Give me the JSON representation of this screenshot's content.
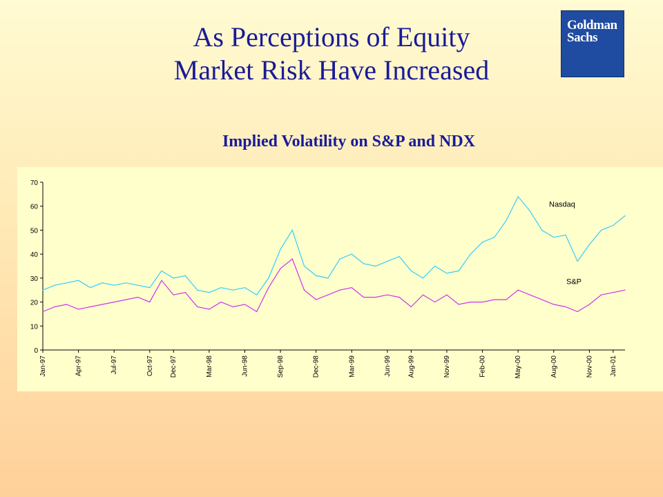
{
  "slide": {
    "title_line1": "As Perceptions of Equity",
    "title_line2": "Market Risk Have Increased",
    "logo_line1": "Goldman",
    "logo_line2": "Sachs"
  },
  "chart_data": {
    "type": "line",
    "title": "Implied Volatility on S&P and NDX",
    "xlabel": "",
    "ylabel": "",
    "ylim": [
      0,
      70
    ],
    "yticks": [
      0,
      10,
      20,
      30,
      40,
      50,
      60,
      70
    ],
    "grid": false,
    "x_tick_labels": [
      "Jan-97",
      "Apr-97",
      "Jul-97",
      "Oct-97",
      "Dec-97",
      "Mar-98",
      "Jun-98",
      "Sep-98",
      "Dec-98",
      "Mar-99",
      "Jun-99",
      "Aug-99",
      "Nov-99",
      "Feb-00",
      "May-00",
      "Aug-00",
      "Nov-00",
      "Jan-01"
    ],
    "x_tick_dates": [
      "1997-01",
      "1997-04",
      "1997-07",
      "1997-10",
      "1997-12",
      "1998-03",
      "1998-06",
      "1998-09",
      "1998-12",
      "1999-03",
      "1999-06",
      "1999-08",
      "1999-11",
      "2000-02",
      "2000-05",
      "2000-08",
      "2000-11",
      "2001-01"
    ],
    "series": [
      {
        "name": "Nasdaq",
        "color": "#33ccff",
        "x": [
          "1997-01",
          "1997-02",
          "1997-03",
          "1997-04",
          "1997-05",
          "1997-06",
          "1997-07",
          "1997-08",
          "1997-09",
          "1997-10",
          "1997-11",
          "1997-12",
          "1998-01",
          "1998-02",
          "1998-03",
          "1998-04",
          "1998-05",
          "1998-06",
          "1998-07",
          "1998-08",
          "1998-09",
          "1998-10",
          "1998-11",
          "1998-12",
          "1999-01",
          "1999-02",
          "1999-03",
          "1999-04",
          "1999-05",
          "1999-06",
          "1999-07",
          "1999-08",
          "1999-09",
          "1999-10",
          "1999-11",
          "1999-12",
          "2000-01",
          "2000-02",
          "2000-03",
          "2000-04",
          "2000-05",
          "2000-06",
          "2000-07",
          "2000-08",
          "2000-09",
          "2000-10",
          "2000-11",
          "2000-12",
          "2001-01",
          "2001-02"
        ],
        "values": [
          25,
          27,
          28,
          29,
          26,
          28,
          27,
          28,
          27,
          26,
          33,
          30,
          31,
          25,
          24,
          26,
          25,
          26,
          23,
          30,
          42,
          50,
          35,
          31,
          30,
          38,
          40,
          36,
          35,
          37,
          39,
          33,
          30,
          35,
          32,
          33,
          40,
          45,
          47,
          54,
          64,
          58,
          50,
          47,
          48,
          37,
          44,
          50,
          52,
          56
        ]
      },
      {
        "name": "S&P",
        "color": "#cc33ee",
        "x": [
          "1997-01",
          "1997-02",
          "1997-03",
          "1997-04",
          "1997-05",
          "1997-06",
          "1997-07",
          "1997-08",
          "1997-09",
          "1997-10",
          "1997-11",
          "1997-12",
          "1998-01",
          "1998-02",
          "1998-03",
          "1998-04",
          "1998-05",
          "1998-06",
          "1998-07",
          "1998-08",
          "1998-09",
          "1998-10",
          "1998-11",
          "1998-12",
          "1999-01",
          "1999-02",
          "1999-03",
          "1999-04",
          "1999-05",
          "1999-06",
          "1999-07",
          "1999-08",
          "1999-09",
          "1999-10",
          "1999-11",
          "1999-12",
          "2000-01",
          "2000-02",
          "2000-03",
          "2000-04",
          "2000-05",
          "2000-06",
          "2000-07",
          "2000-08",
          "2000-09",
          "2000-10",
          "2000-11",
          "2000-12",
          "2001-01",
          "2001-02"
        ],
        "values": [
          16,
          18,
          19,
          17,
          18,
          19,
          20,
          21,
          22,
          20,
          29,
          23,
          24,
          18,
          17,
          20,
          18,
          19,
          16,
          26,
          34,
          38,
          25,
          21,
          23,
          25,
          26,
          22,
          22,
          23,
          22,
          18,
          23,
          20,
          23,
          19,
          20,
          20,
          21,
          21,
          25,
          23,
          21,
          19,
          18,
          16,
          19,
          23,
          24,
          25
        ]
      }
    ],
    "series_labels": [
      "Nasdaq",
      "S&P"
    ]
  }
}
